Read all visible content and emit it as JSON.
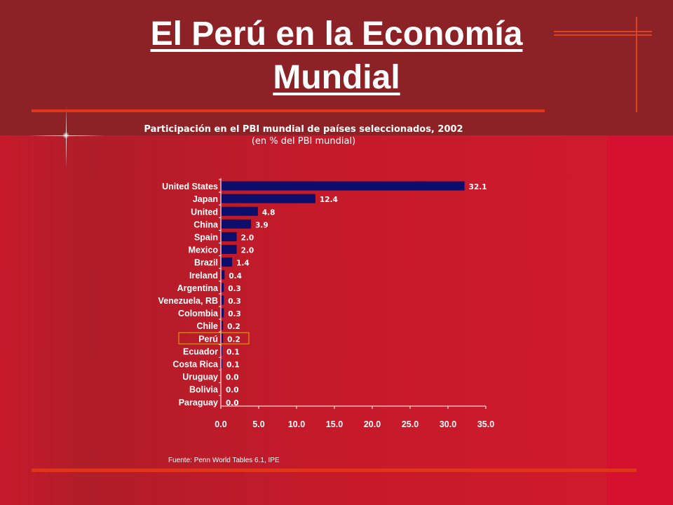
{
  "slide": {
    "title_line1": "El Perú en la Economía",
    "title_line2": "Mundial",
    "source": "Fuente: Penn World Tables 6.1, IPE"
  },
  "colors": {
    "bar": "#0d0d6b",
    "highlight_box": "#e8a317",
    "text": "#ffffff"
  },
  "chart_data": {
    "type": "bar",
    "orientation": "horizontal",
    "title": "Participación en el PBI mundial de países seleccionados, 2002",
    "subtitle": "(en % del PBI mundial)",
    "categories": [
      "United States",
      "Japan",
      "United",
      "China",
      "Spain",
      "Mexico",
      "Brazil",
      "Ireland",
      "Argentina",
      "Venezuela, RB",
      "Colombia",
      "Chile",
      "Perú",
      "Ecuador",
      "Costa Rica",
      "Uruguay",
      "Bolivia",
      "Paraguay"
    ],
    "values": [
      32.1,
      12.4,
      4.8,
      3.9,
      2.0,
      2.0,
      1.4,
      0.4,
      0.3,
      0.3,
      0.3,
      0.2,
      0.2,
      0.1,
      0.1,
      0.0,
      0.0,
      0.0
    ],
    "value_labels": [
      "32.1",
      "12.4",
      "4.8",
      "3.9",
      "2.0",
      "2.0",
      "1.4",
      "0.4",
      "0.3",
      "0.3",
      "0.3",
      "0.2",
      "0.2",
      "0.1",
      "0.1",
      "0.0",
      "0.0",
      "0.0"
    ],
    "xlim": [
      0,
      35
    ],
    "x_ticks": [
      "0.0",
      "5.0",
      "10.0",
      "15.0",
      "20.0",
      "25.0",
      "30.0",
      "35.0"
    ],
    "highlighted_category": "Perú",
    "grid": false,
    "legend": "none"
  }
}
